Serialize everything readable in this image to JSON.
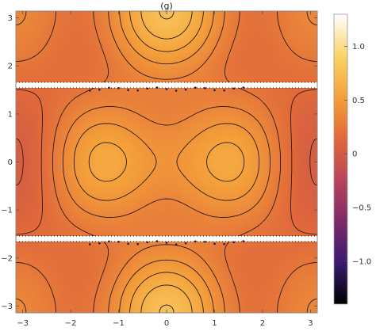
{
  "chart_data": {
    "type": "heatmap",
    "title": "(g)",
    "xlim": [
      -3.14159,
      3.14159
    ],
    "ylim": [
      -3.14159,
      3.14159
    ],
    "xticks": [
      -3,
      -2,
      -1,
      0,
      1,
      2,
      3
    ],
    "xtick_labels": [
      "−3",
      "−2",
      "−1",
      "0",
      "1",
      "2",
      "3"
    ],
    "yticks": [
      -3,
      -2,
      -1,
      0,
      1,
      2,
      3
    ],
    "ytick_labels": [
      "−3",
      "−2",
      "−1",
      "0",
      "1",
      "2",
      "3"
    ],
    "singular_lines_y": [
      1.6,
      -1.6
    ],
    "colorbar": {
      "range": [
        -1.4,
        1.3
      ],
      "ticks": [
        1.0,
        0.5,
        0,
        -0.5,
        -1.0
      ],
      "tick_labels": [
        "1.0",
        "0.5",
        "0",
        "−0.5",
        "−1.0"
      ],
      "colors": [
        "#000000",
        "#3b1a6e",
        "#7b2a6a",
        "#b8455a",
        "#e0683a",
        "#f4a03a",
        "#f9d468",
        "#ffffff"
      ]
    },
    "contour_levels_solid": [
      -0.1,
      0.15,
      0.35,
      0.55,
      0.75
    ],
    "contour_levels_dashed": [
      0.05,
      0.25,
      0.45,
      0.65
    ]
  }
}
